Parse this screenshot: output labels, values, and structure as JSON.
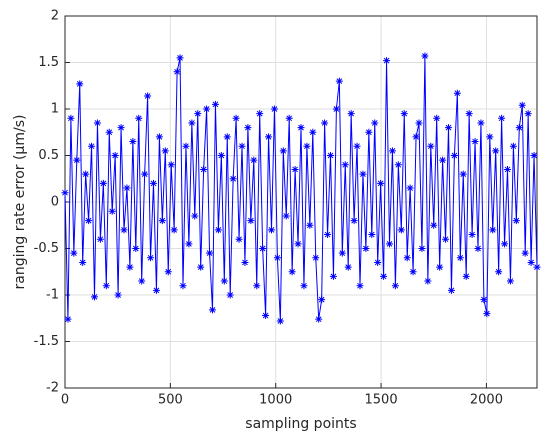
{
  "chart_data": {
    "type": "line",
    "xlabel": "sampling points",
    "ylabel": "ranging rate error (μm/s)",
    "x": [
      0,
      14,
      28,
      42,
      56,
      70,
      84,
      98,
      112,
      126,
      140,
      154,
      168,
      182,
      196,
      210,
      224,
      238,
      252,
      266,
      280,
      294,
      308,
      322,
      336,
      350,
      364,
      378,
      392,
      406,
      420,
      434,
      448,
      462,
      476,
      490,
      504,
      518,
      532,
      546,
      560,
      574,
      588,
      602,
      616,
      630,
      644,
      658,
      672,
      686,
      700,
      714,
      728,
      742,
      756,
      770,
      784,
      798,
      812,
      826,
      840,
      854,
      868,
      882,
      896,
      910,
      924,
      938,
      952,
      966,
      980,
      994,
      1008,
      1022,
      1036,
      1050,
      1064,
      1078,
      1092,
      1106,
      1120,
      1134,
      1148,
      1162,
      1176,
      1190,
      1204,
      1218,
      1232,
      1246,
      1260,
      1274,
      1288,
      1302,
      1316,
      1330,
      1344,
      1358,
      1372,
      1386,
      1400,
      1414,
      1428,
      1442,
      1456,
      1470,
      1484,
      1498,
      1512,
      1526,
      1540,
      1554,
      1568,
      1582,
      1596,
      1610,
      1624,
      1638,
      1652,
      1666,
      1680,
      1694,
      1708,
      1722,
      1736,
      1750,
      1764,
      1778,
      1792,
      1806,
      1820,
      1834,
      1848,
      1862,
      1876,
      1890,
      1904,
      1918,
      1932,
      1946,
      1960,
      1974,
      1988,
      2002,
      2016,
      2030,
      2044,
      2058,
      2072,
      2086,
      2100,
      2114,
      2128,
      2142,
      2156,
      2170,
      2184,
      2198,
      2212,
      2226,
      2240
    ],
    "series": [
      {
        "color": "#0000ff",
        "values": [
          0.1,
          -1.26,
          0.9,
          -0.55,
          0.45,
          1.27,
          -0.65,
          0.3,
          -0.2,
          0.6,
          -1.02,
          0.85,
          -0.4,
          0.2,
          -0.9,
          0.75,
          -0.1,
          0.5,
          -1.0,
          0.8,
          -0.3,
          0.15,
          -0.7,
          0.65,
          -0.5,
          0.9,
          -0.85,
          0.3,
          1.14,
          -0.6,
          0.2,
          -0.95,
          0.7,
          -0.2,
          0.55,
          -0.75,
          0.4,
          -0.3,
          1.4,
          1.55,
          -0.9,
          0.6,
          -0.45,
          0.85,
          -0.15,
          0.95,
          -0.7,
          0.35,
          1.0,
          -0.55,
          -1.16,
          1.05,
          -0.3,
          0.5,
          -0.85,
          0.7,
          -1.0,
          0.25,
          0.9,
          -0.4,
          0.6,
          -0.65,
          0.8,
          -0.2,
          0.45,
          -0.9,
          0.95,
          -0.5,
          -1.22,
          0.7,
          -0.3,
          1.0,
          -0.6,
          -1.28,
          0.55,
          -0.15,
          0.9,
          -0.75,
          0.35,
          -0.45,
          0.8,
          -0.9,
          0.6,
          -0.25,
          0.75,
          -0.6,
          -1.26,
          -1.05,
          0.85,
          -0.35,
          0.5,
          -0.8,
          1.0,
          1.3,
          -0.55,
          0.4,
          -0.7,
          0.95,
          -0.2,
          0.6,
          -0.9,
          0.3,
          -0.5,
          0.75,
          -0.35,
          0.85,
          -0.65,
          0.2,
          -0.8,
          1.52,
          -0.45,
          0.55,
          -0.9,
          0.4,
          -0.3,
          0.95,
          -0.6,
          0.15,
          -0.75,
          0.7,
          0.85,
          -0.5,
          1.57,
          -0.85,
          0.6,
          -0.25,
          0.9,
          -0.7,
          0.45,
          -0.4,
          0.8,
          -0.95,
          0.5,
          1.17,
          -0.6,
          0.3,
          -0.8,
          0.95,
          -0.35,
          0.65,
          -0.5,
          0.85,
          -1.05,
          -1.2,
          0.7,
          -0.3,
          0.55,
          -0.75,
          0.9,
          -0.45,
          0.35,
          -0.85,
          0.6,
          -0.2,
          0.8,
          1.04,
          -0.55,
          0.95,
          -0.65,
          0.5,
          -0.7
        ]
      }
    ],
    "xlim": [
      0,
      2240
    ],
    "ylim": [
      -2,
      2
    ],
    "xticks": [
      0,
      500,
      1000,
      1500,
      2000
    ],
    "yticks": [
      -2,
      -1.5,
      -1,
      -0.5,
      0,
      0.5,
      1,
      1.5,
      2
    ],
    "grid": true,
    "marker": "asterisk"
  }
}
